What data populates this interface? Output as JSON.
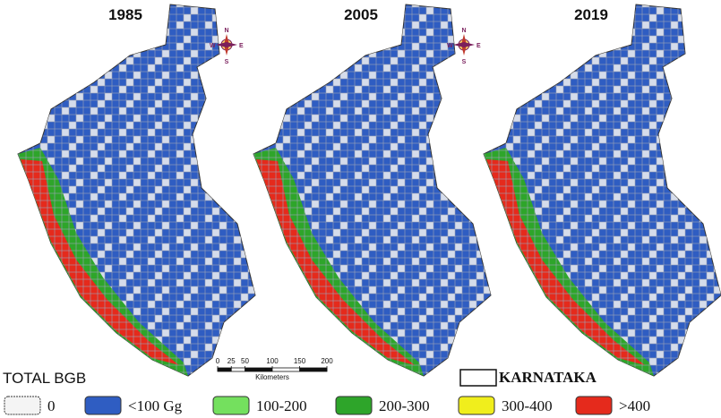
{
  "maps": [
    {
      "title": "1985"
    },
    {
      "title": "2005"
    },
    {
      "title": "2019"
    }
  ],
  "compass": {
    "north": "N",
    "south": "S",
    "east": "E",
    "west": "W"
  },
  "scale_bar": {
    "ticks": [
      0,
      25,
      50,
      100,
      150,
      200
    ],
    "max": 200,
    "unit": "Kilometers"
  },
  "legend": {
    "title": "TOTAL BGB",
    "items": [
      {
        "label": "0",
        "color": "#f4f4f4"
      },
      {
        "label": "<100 Gg",
        "color": "#2f5dc2"
      },
      {
        "label": "100-200",
        "color": "#74e05e"
      },
      {
        "label": "200-300",
        "color": "#2ea52a"
      },
      {
        "label": "300-400",
        "color": "#f0ee1c"
      },
      {
        "label": ">400",
        "color": "#e52a1c"
      }
    ],
    "boundary": "KARNATAKA"
  }
}
